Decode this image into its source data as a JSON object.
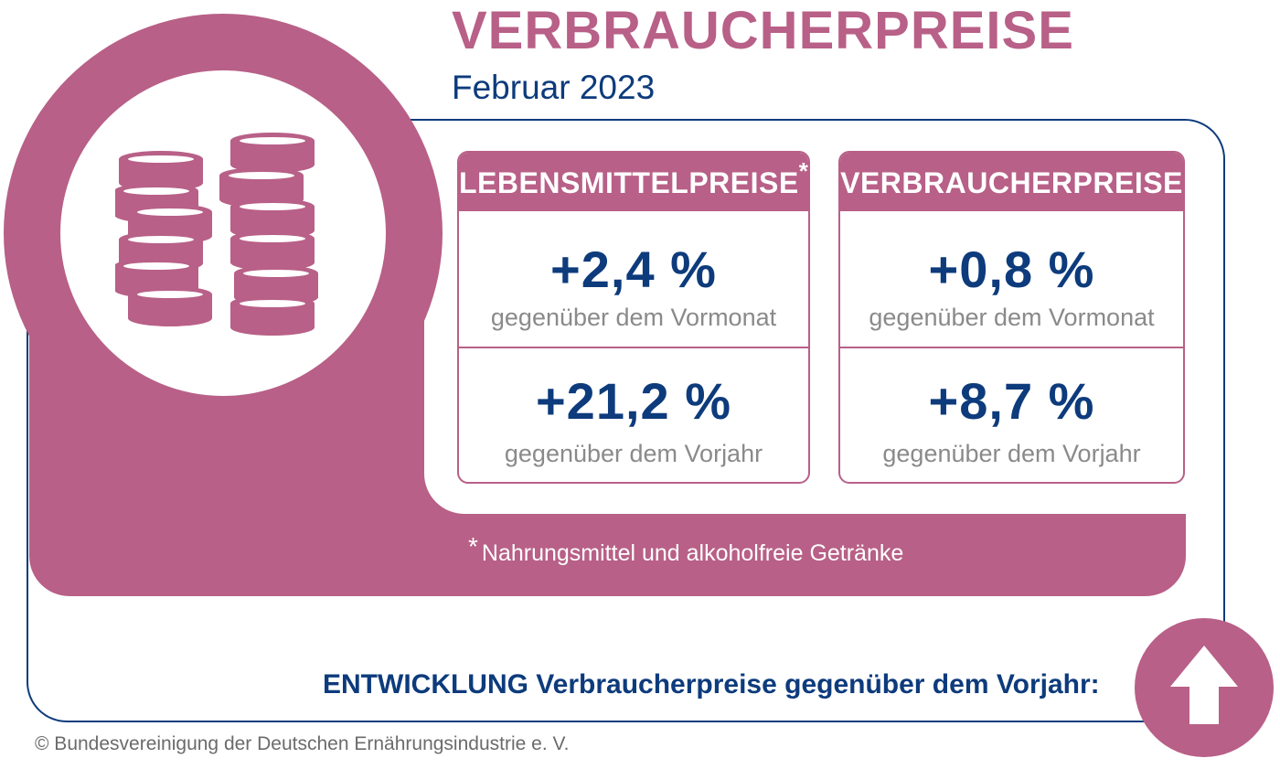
{
  "header": {
    "title": "VERBRAUCHERPREISE",
    "subtitle": "Februar 2023"
  },
  "cards": [
    {
      "header": "LEBENSMITTELPREISE",
      "header_marker": "*",
      "month_change": "+2,4 %",
      "month_caption": "gegenüber dem Vormonat",
      "year_change": "+21,2 %",
      "year_caption": "gegenüber dem Vorjahr"
    },
    {
      "header": "VERBRAUCHERPREISE",
      "month_change": "+0,8 %",
      "month_caption": "gegenüber dem Vormonat",
      "year_change": "+8,7 %",
      "year_caption": "gegenüber dem Vorjahr"
    }
  ],
  "footnote": {
    "marker": "*",
    "text": "Nahrungsmittel und alkoholfreie Getränke"
  },
  "development": {
    "text": "ENTWICKLUNG Verbraucherpreise gegenüber dem Vorjahr:",
    "indicator_icon": "arrow-up-icon"
  },
  "coins_icon": "coins-stack-icon",
  "copyright": "© Bundesvereinigung der Deutschen Ernährungsindustrie e. V.",
  "colors": {
    "accent": "#b86087",
    "primary": "#0d3b7c",
    "caption": "#8a8a8a",
    "background": "#ffffff"
  }
}
